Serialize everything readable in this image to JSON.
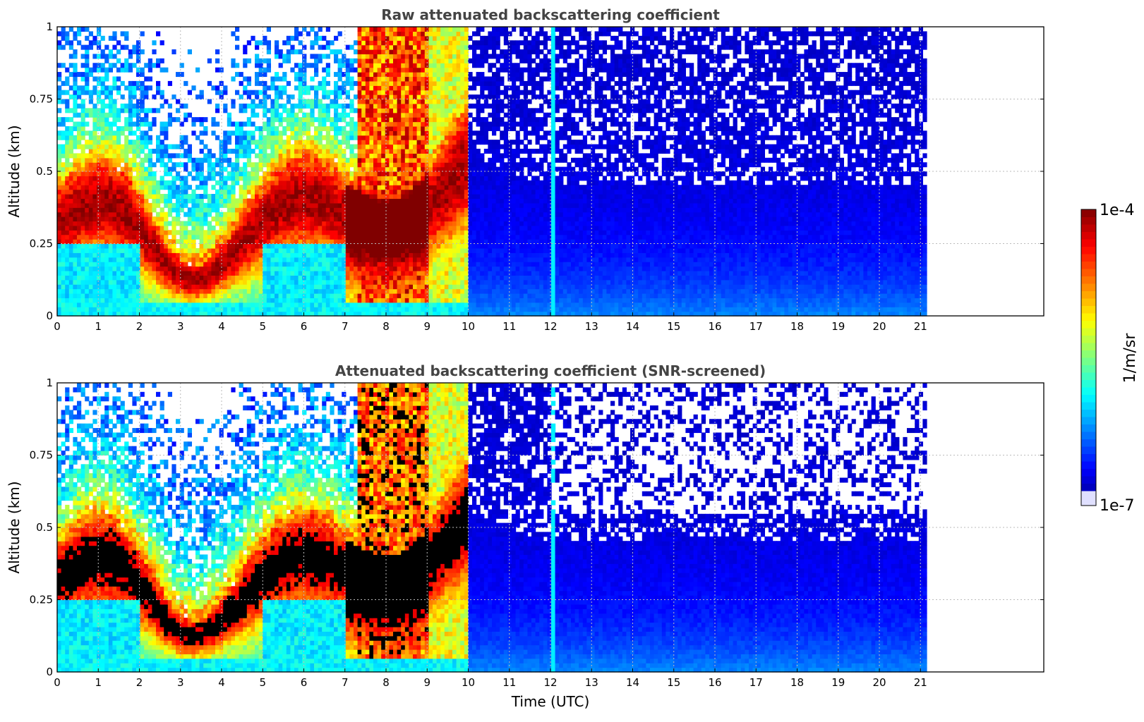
{
  "chart_data": [
    {
      "type": "heatmap",
      "id": "raw",
      "title": "Raw attenuated backscattering coefficient",
      "xlabel": "",
      "ylabel": "Altitude (km)",
      "xlim": [
        0,
        24
      ],
      "ylim": [
        0,
        1
      ],
      "xticks": [
        "0",
        "1",
        "2",
        "3",
        "4",
        "5",
        "6",
        "7",
        "8",
        "9",
        "10",
        "11",
        "12",
        "13",
        "14",
        "15",
        "16",
        "17",
        "18",
        "19",
        "20",
        "21"
      ],
      "yticks": [
        "0",
        "0.25",
        "0.5",
        "0.75",
        "1"
      ],
      "grid": true,
      "data_extent_hours": [
        0,
        21.15
      ],
      "colormap": "jet",
      "colorscale": "log",
      "clim": [
        "1e-7",
        "1e-4"
      ],
      "screened": false
    },
    {
      "type": "heatmap",
      "id": "snr",
      "title": "Attenuated backscattering coefficient (SNR-screened)",
      "xlabel": "Time (UTC)",
      "ylabel": "Altitude (km)",
      "xlim": [
        0,
        24
      ],
      "ylim": [
        0,
        1
      ],
      "xticks": [
        "0",
        "1",
        "2",
        "3",
        "4",
        "5",
        "6",
        "7",
        "8",
        "9",
        "10",
        "11",
        "12",
        "13",
        "14",
        "15",
        "16",
        "17",
        "18",
        "19",
        "20",
        "21"
      ],
      "yticks": [
        "0",
        "0.25",
        "0.5",
        "0.75",
        "1"
      ],
      "grid": true,
      "data_extent_hours": [
        0,
        21.15
      ],
      "colormap": "jet",
      "colorscale": "log",
      "clim": [
        "1e-7",
        "1e-4"
      ],
      "screened": true
    }
  ],
  "colorbar": {
    "label": "1/m/sr",
    "max_label": "1e-4",
    "min_label": "1e-7",
    "colormap": "jet"
  }
}
